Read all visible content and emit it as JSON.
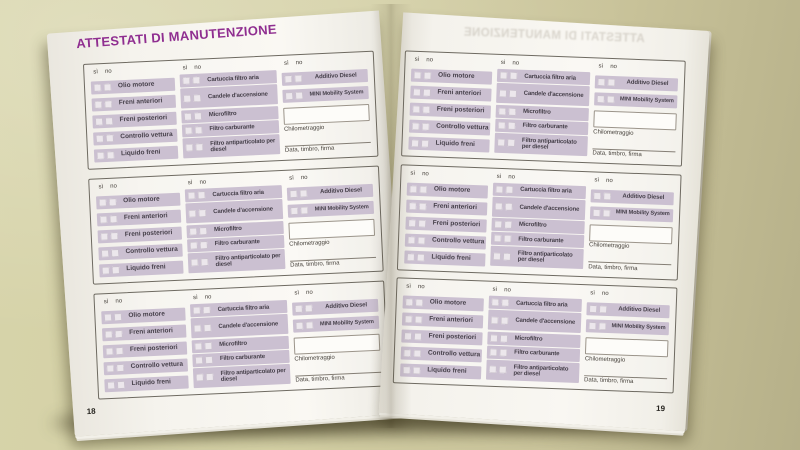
{
  "booklet": {
    "title": "ATTESTATI DI MANUTENZIONE",
    "ghost_title": "ATTESTATI DI MANUTENZIONE",
    "left_page_number": "18",
    "right_page_number": "19"
  },
  "form": {
    "yes_label": "sì",
    "no_label": "no",
    "service_items": [
      "Olio motore",
      "Freni anteriori",
      "Freni posteriori",
      "Controllo vettura",
      "Liquido freni"
    ],
    "filter_items": [
      "Cartuccia filtro aria",
      "Candele d'accensione",
      "Microfiltro",
      "Filtro carburante",
      "Filtro antiparticolato per diesel"
    ],
    "extra_items": [
      "Additivo Diesel",
      "MINI Mobility System"
    ],
    "km_label": "Chilometraggio",
    "signature_label": "Data, timbro, firma"
  },
  "colors": {
    "title_accent": "#8f2e90",
    "row_bar": "#cbc0d1",
    "page": "#f6f4ee",
    "table_surface": "#d2cda2"
  }
}
